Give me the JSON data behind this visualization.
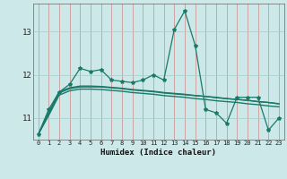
{
  "title": "",
  "xlabel": "Humidex (Indice chaleur)",
  "background_color": "#cce8e8",
  "grid_color": "#aacfcf",
  "line_color": "#1a7a6a",
  "xlim": [
    -0.5,
    23.5
  ],
  "ylim": [
    10.5,
    13.65
  ],
  "yticks": [
    11,
    12,
    13
  ],
  "xticks": [
    0,
    1,
    2,
    3,
    4,
    5,
    6,
    7,
    8,
    9,
    10,
    11,
    12,
    13,
    14,
    15,
    16,
    17,
    18,
    19,
    20,
    21,
    22,
    23
  ],
  "series1_x": [
    0,
    1,
    2,
    3,
    4,
    5,
    6,
    7,
    8,
    9,
    10,
    11,
    12,
    13,
    14,
    15,
    16,
    17,
    18,
    19,
    20,
    21,
    22,
    23
  ],
  "series1_y": [
    10.62,
    11.2,
    11.6,
    11.78,
    12.15,
    12.08,
    12.12,
    11.88,
    11.85,
    11.82,
    11.88,
    12.0,
    11.88,
    13.05,
    13.48,
    12.68,
    11.2,
    11.12,
    10.88,
    11.48,
    11.48,
    11.48,
    10.72,
    11.0
  ],
  "series2_x": [
    0,
    1,
    2,
    3,
    4,
    5,
    6,
    7,
    8,
    9,
    10,
    11,
    12,
    13,
    14,
    15,
    16,
    17,
    18,
    19,
    20,
    21,
    22,
    23
  ],
  "series2_y": [
    10.62,
    11.1,
    11.58,
    11.68,
    11.72,
    11.72,
    11.72,
    11.7,
    11.68,
    11.65,
    11.63,
    11.61,
    11.58,
    11.56,
    11.54,
    11.52,
    11.5,
    11.47,
    11.45,
    11.43,
    11.41,
    11.38,
    11.36,
    11.33
  ],
  "series3_x": [
    0,
    1,
    2,
    3,
    4,
    5,
    6,
    7,
    8,
    9,
    10,
    11,
    12,
    13,
    14,
    15,
    16,
    17,
    18,
    19,
    20,
    21,
    22,
    23
  ],
  "series3_y": [
    10.62,
    11.14,
    11.61,
    11.7,
    11.74,
    11.74,
    11.73,
    11.71,
    11.69,
    11.66,
    11.64,
    11.62,
    11.59,
    11.57,
    11.55,
    11.52,
    11.5,
    11.48,
    11.45,
    11.43,
    11.41,
    11.38,
    11.36,
    11.33
  ],
  "series4_x": [
    0,
    1,
    2,
    3,
    4,
    5,
    6,
    7,
    8,
    9,
    10,
    11,
    12,
    13,
    14,
    15,
    16,
    17,
    18,
    19,
    20,
    21,
    22,
    23
  ],
  "series4_y": [
    10.62,
    11.06,
    11.53,
    11.63,
    11.67,
    11.67,
    11.66,
    11.64,
    11.62,
    11.59,
    11.57,
    11.55,
    11.52,
    11.5,
    11.48,
    11.45,
    11.43,
    11.4,
    11.38,
    11.36,
    11.33,
    11.31,
    11.28,
    11.26
  ]
}
